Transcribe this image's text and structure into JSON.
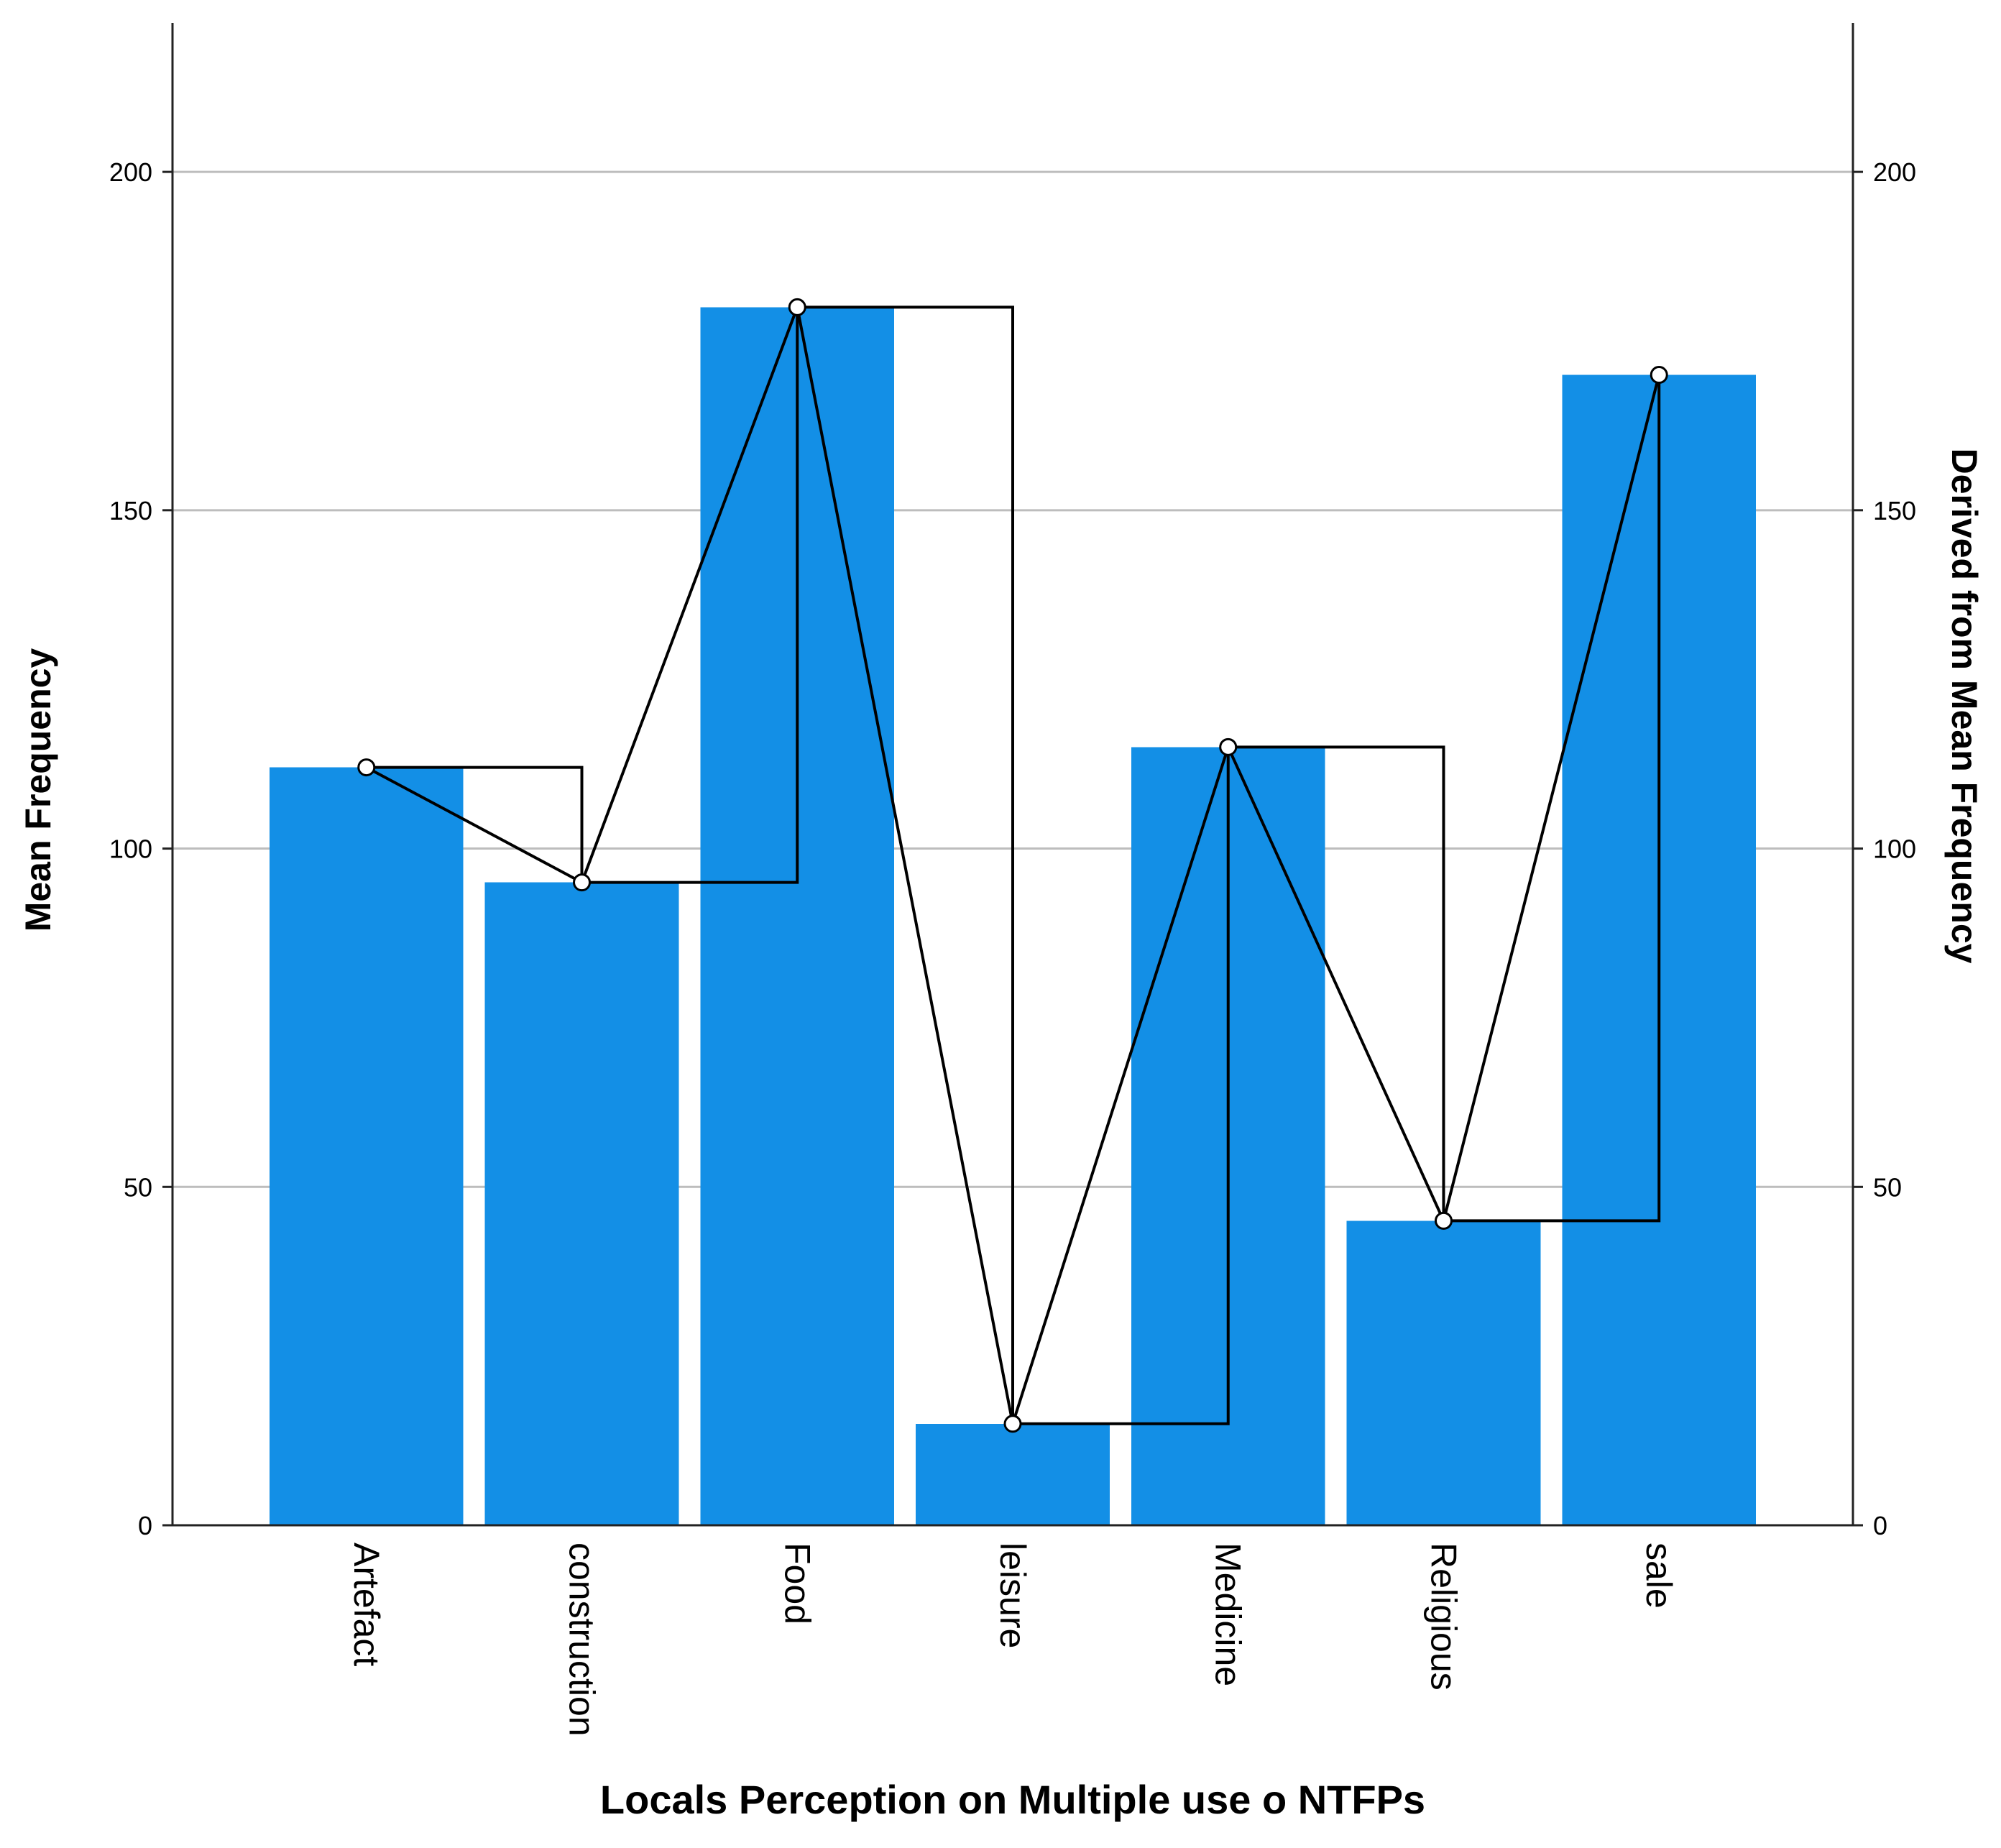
{
  "chart_data": {
    "type": "bar",
    "categories": [
      "Artefact",
      "construction",
      "Food",
      "leisure",
      "Medicine",
      "Religious",
      "sale"
    ],
    "series": [
      {
        "values": [
          112,
          95,
          180,
          15,
          115,
          45,
          170
        ]
      }
    ],
    "overlay_line": {
      "values": [
        112,
        95,
        180,
        15,
        115,
        45,
        170
      ],
      "markers": "open-circle",
      "step_line": true
    },
    "title": "",
    "xlabel": "Locals Perception on Multiple use o NTFPs",
    "ylabel": "Mean Frequency",
    "y2label": "Derived from Mean Frequency",
    "ylim": [
      0,
      222
    ],
    "y2lim": [
      0,
      222
    ],
    "yticks": [
      "0",
      "50",
      "100",
      "150",
      "200"
    ],
    "y2ticks": [
      "0",
      "50",
      "100",
      "150",
      "200"
    ],
    "grid": true,
    "legend": "none",
    "colors": {
      "bar": "#138fe6",
      "line": "#000000",
      "grid": "#bdbdbd"
    }
  }
}
